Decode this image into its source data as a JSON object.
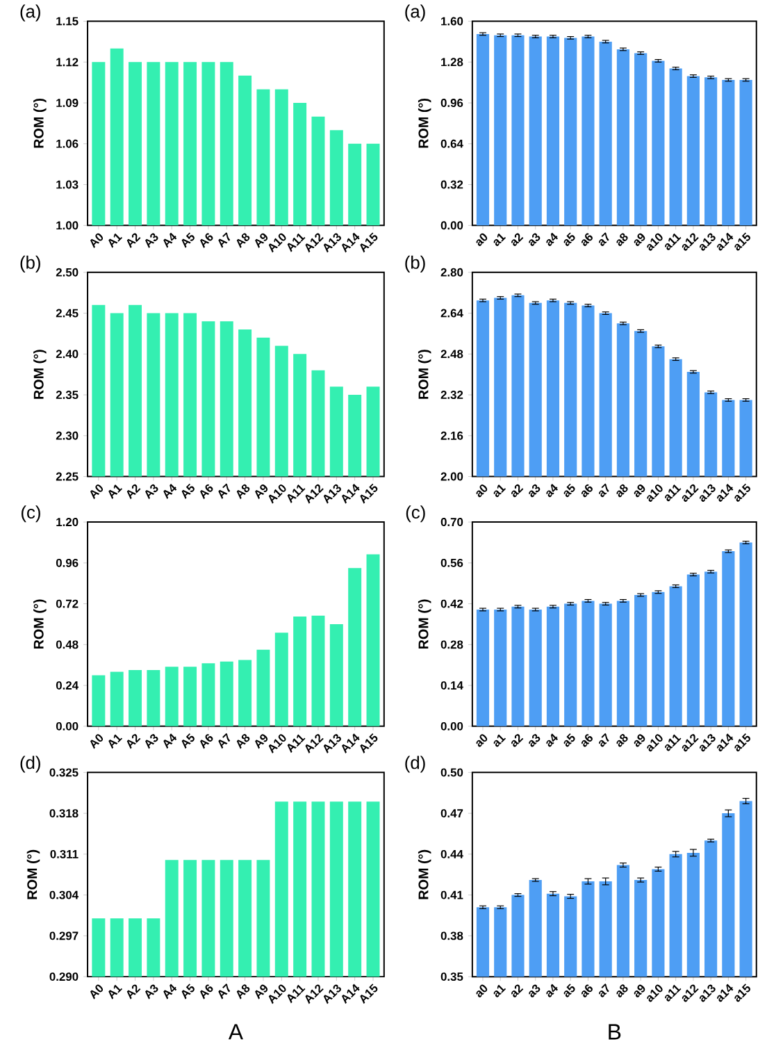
{
  "chart_data": [
    {
      "type": "bar",
      "title": "(a)",
      "ylabel": "ROM (°)",
      "color": "#34efb1",
      "categories": [
        "A0",
        "A1",
        "A2",
        "A3",
        "A4",
        "A5",
        "A6",
        "A7",
        "A8",
        "A9",
        "A10",
        "A11",
        "A12",
        "A13",
        "A14",
        "A15"
      ],
      "values": [
        1.12,
        1.13,
        1.12,
        1.12,
        1.12,
        1.12,
        1.12,
        1.12,
        1.11,
        1.1,
        1.1,
        1.09,
        1.08,
        1.07,
        1.06,
        1.06
      ],
      "ylim": [
        1.0,
        1.15
      ],
      "yticks": [
        {
          "value": 1.0,
          "label": "1.00"
        },
        {
          "value": 1.03,
          "label": "1.03"
        },
        {
          "value": 1.06,
          "label": "1.06"
        },
        {
          "value": 1.09,
          "label": "1.09"
        },
        {
          "value": 1.12,
          "label": "1.12"
        },
        {
          "value": 1.15,
          "label": "1.15"
        }
      ]
    },
    {
      "type": "bar",
      "title": "(a)",
      "ylabel": "ROM (°)",
      "color": "#4e9ef4",
      "categories": [
        "a0",
        "a1",
        "a2",
        "a3",
        "a4",
        "a5",
        "a6",
        "a7",
        "a8",
        "a9",
        "a10",
        "a11",
        "a12",
        "a13",
        "a14",
        "a15"
      ],
      "values": [
        1.5,
        1.49,
        1.49,
        1.48,
        1.48,
        1.47,
        1.48,
        1.44,
        1.38,
        1.35,
        1.29,
        1.23,
        1.17,
        1.16,
        1.14,
        1.14
      ],
      "errors": [
        0.01,
        0.01,
        0.01,
        0.01,
        0.01,
        0.01,
        0.01,
        0.01,
        0.01,
        0.01,
        0.01,
        0.01,
        0.01,
        0.01,
        0.01,
        0.01
      ],
      "ylim": [
        0.0,
        1.6
      ],
      "yticks": [
        {
          "value": 0.0,
          "label": "0.00"
        },
        {
          "value": 0.32,
          "label": "0.32"
        },
        {
          "value": 0.64,
          "label": "0.64"
        },
        {
          "value": 0.96,
          "label": "0.96"
        },
        {
          "value": 1.28,
          "label": "1.28"
        },
        {
          "value": 1.6,
          "label": "1.60"
        }
      ]
    },
    {
      "type": "bar",
      "title": "(b)",
      "ylabel": "ROM (°)",
      "color": "#34efb1",
      "categories": [
        "A0",
        "A1",
        "A2",
        "A3",
        "A4",
        "A5",
        "A6",
        "A7",
        "A8",
        "A9",
        "A10",
        "A11",
        "A12",
        "A13",
        "A14",
        "A15"
      ],
      "values": [
        2.46,
        2.45,
        2.46,
        2.45,
        2.45,
        2.45,
        2.44,
        2.44,
        2.43,
        2.42,
        2.41,
        2.4,
        2.38,
        2.36,
        2.35,
        2.36
      ],
      "ylim": [
        2.25,
        2.5
      ],
      "yticks": [
        {
          "value": 2.25,
          "label": "2.25"
        },
        {
          "value": 2.3,
          "label": "2.30"
        },
        {
          "value": 2.35,
          "label": "2.35"
        },
        {
          "value": 2.4,
          "label": "2.40"
        },
        {
          "value": 2.45,
          "label": "2.45"
        },
        {
          "value": 2.5,
          "label": "2.50"
        }
      ]
    },
    {
      "type": "bar",
      "title": "(b)",
      "ylabel": "ROM (°)",
      "color": "#4e9ef4",
      "categories": [
        "a0",
        "a1",
        "a2",
        "a3",
        "a4",
        "a5",
        "a6",
        "a7",
        "a8",
        "a9",
        "a10",
        "a11",
        "a12",
        "a13",
        "a14",
        "a15"
      ],
      "values": [
        2.69,
        2.7,
        2.71,
        2.68,
        2.69,
        2.68,
        2.67,
        2.64,
        2.6,
        2.57,
        2.51,
        2.46,
        2.41,
        2.33,
        2.3,
        2.3
      ],
      "errors": [
        0.005,
        0.005,
        0.005,
        0.005,
        0.005,
        0.005,
        0.005,
        0.005,
        0.005,
        0.005,
        0.005,
        0.005,
        0.005,
        0.005,
        0.005,
        0.005
      ],
      "ylim": [
        2.0,
        2.8
      ],
      "yticks": [
        {
          "value": 2.0,
          "label": "2.00"
        },
        {
          "value": 2.16,
          "label": "2.16"
        },
        {
          "value": 2.32,
          "label": "2.32"
        },
        {
          "value": 2.48,
          "label": "2.48"
        },
        {
          "value": 2.64,
          "label": "2.64"
        },
        {
          "value": 2.8,
          "label": "2.80"
        }
      ]
    },
    {
      "type": "bar",
      "title": "(c)",
      "ylabel": "ROM (°)",
      "color": "#34efb1",
      "categories": [
        "A0",
        "A1",
        "A2",
        "A3",
        "A4",
        "A5",
        "A6",
        "A7",
        "A8",
        "A9",
        "A10",
        "A11",
        "A12",
        "A13",
        "A14",
        "A15"
      ],
      "values": [
        0.3,
        0.32,
        0.33,
        0.33,
        0.35,
        0.35,
        0.37,
        0.38,
        0.39,
        0.45,
        0.55,
        0.645,
        0.65,
        0.6,
        0.93,
        1.01
      ],
      "ylim": [
        0.0,
        1.2
      ],
      "yticks": [
        {
          "value": 0.0,
          "label": "0.00"
        },
        {
          "value": 0.24,
          "label": "0.24"
        },
        {
          "value": 0.48,
          "label": "0.48"
        },
        {
          "value": 0.72,
          "label": "0.72"
        },
        {
          "value": 0.96,
          "label": "0.96"
        },
        {
          "value": 1.2,
          "label": "1.20"
        }
      ]
    },
    {
      "type": "bar",
      "title": "(c)",
      "ylabel": "ROM (°)",
      "color": "#4e9ef4",
      "categories": [
        "a0",
        "a1",
        "a2",
        "a3",
        "a4",
        "a5",
        "a6",
        "a7",
        "a8",
        "a9",
        "a10",
        "a11",
        "a12",
        "a13",
        "a14",
        "a15"
      ],
      "values": [
        0.4,
        0.4,
        0.41,
        0.4,
        0.41,
        0.42,
        0.43,
        0.42,
        0.43,
        0.45,
        0.46,
        0.48,
        0.52,
        0.53,
        0.6,
        0.63
      ],
      "errors": [
        0.0045,
        0.0045,
        0.0045,
        0.0045,
        0.0045,
        0.0045,
        0.0045,
        0.0045,
        0.0045,
        0.0045,
        0.0045,
        0.0045,
        0.0045,
        0.0045,
        0.0045,
        0.0045
      ],
      "ylim": [
        0.0,
        0.7
      ],
      "yticks": [
        {
          "value": 0.0,
          "label": "0.00"
        },
        {
          "value": 0.14,
          "label": "0.14"
        },
        {
          "value": 0.28,
          "label": "0.28"
        },
        {
          "value": 0.42,
          "label": "0.42"
        },
        {
          "value": 0.56,
          "label": "0.56"
        },
        {
          "value": 0.7,
          "label": "0.70"
        }
      ]
    },
    {
      "type": "bar",
      "title": "(d)",
      "ylabel": "ROM (°)",
      "color": "#34efb1",
      "categories": [
        "A0",
        "A1",
        "A2",
        "A3",
        "A4",
        "A5",
        "A6",
        "A7",
        "A8",
        "A9",
        "A10",
        "A11",
        "A12",
        "A13",
        "A14",
        "A15"
      ],
      "values": [
        0.3,
        0.3,
        0.3,
        0.3,
        0.31,
        0.31,
        0.31,
        0.31,
        0.31,
        0.31,
        0.32,
        0.32,
        0.32,
        0.32,
        0.32,
        0.32
      ],
      "ylim": [
        0.29,
        0.325
      ],
      "yticks": [
        {
          "value": 0.29,
          "label": "0.290"
        },
        {
          "value": 0.297,
          "label": "0.297"
        },
        {
          "value": 0.304,
          "label": "0.304"
        },
        {
          "value": 0.311,
          "label": "0.311"
        },
        {
          "value": 0.318,
          "label": "0.318"
        },
        {
          "value": 0.325,
          "label": "0.325"
        }
      ],
      "annotations": [
        "A"
      ]
    },
    {
      "type": "bar",
      "title": "(d)",
      "ylabel": "ROM (°)",
      "color": "#4e9ef4",
      "categories": [
        "a0",
        "a1",
        "a2",
        "a3",
        "a4",
        "a5",
        "a6",
        "a7",
        "a8",
        "a9",
        "a10",
        "a11",
        "a12",
        "a13",
        "a14",
        "a15"
      ],
      "values": [
        0.401,
        0.401,
        0.41,
        0.421,
        0.411,
        0.409,
        0.42,
        0.42,
        0.432,
        0.421,
        0.429,
        0.44,
        0.441,
        0.45,
        0.47,
        0.479
      ],
      "errors": [
        0.001,
        0.001,
        0.001,
        0.001,
        0.0015,
        0.0015,
        0.002,
        0.0025,
        0.0015,
        0.0015,
        0.0015,
        0.002,
        0.0025,
        0.001,
        0.0025,
        0.002
      ],
      "ylim": [
        0.35,
        0.5
      ],
      "yticks": [
        {
          "value": 0.35,
          "label": "0.35"
        },
        {
          "value": 0.38,
          "label": "0.38"
        },
        {
          "value": 0.41,
          "label": "0.41"
        },
        {
          "value": 0.44,
          "label": "0.44"
        },
        {
          "value": 0.47,
          "label": "0.47"
        },
        {
          "value": 0.5,
          "label": "0.50"
        }
      ],
      "annotations": [
        "B"
      ]
    }
  ]
}
